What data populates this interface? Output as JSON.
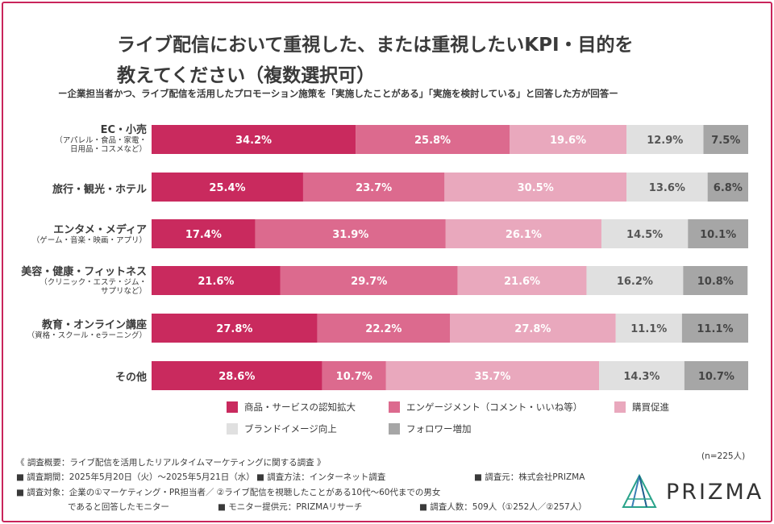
{
  "title_line1": "ライブ配信において重視した、または重視したいKPI・目的を",
  "title_line2": "教えてください（複数選択可）",
  "subtitle": "ー企業担当者かつ、ライブ配信を活用したプロモーション施策を「実施したことがある」「実施を検討している」と回答した方が回答ー",
  "colors": [
    "#c92a5e",
    "#dc6a8e",
    "#e9a8bd",
    "#e0e0e0",
    "#a6a6a6"
  ],
  "chart_data": {
    "type": "bar",
    "orientation": "horizontal-stacked-100",
    "categories": [
      {
        "label": "EC・小売",
        "sub": [
          "（アパレル・食品・家電・",
          "日用品・コスメなど）"
        ]
      },
      {
        "label": "旅行・観光・ホテル",
        "sub": []
      },
      {
        "label": "エンタメ・メディア",
        "sub": [
          "（ゲーム・音楽・映画・アプリ）"
        ]
      },
      {
        "label": "美容・健康・フィットネス",
        "sub": [
          "（クリニック・エステ・ジム・",
          "サプリなど）"
        ]
      },
      {
        "label": "教育・オンライン講座",
        "sub": [
          "（資格・スクール・eラーニング）"
        ]
      },
      {
        "label": "その他",
        "sub": []
      }
    ],
    "series": [
      {
        "name": "商品・サービスの認知拡大",
        "values": [
          34.2,
          25.4,
          17.4,
          21.6,
          27.8,
          28.6
        ]
      },
      {
        "name": "エンゲージメント（コメント・いいね等）",
        "values": [
          25.8,
          23.7,
          31.9,
          29.7,
          22.2,
          10.7
        ]
      },
      {
        "name": "購買促進",
        "values": [
          19.6,
          30.5,
          26.1,
          21.6,
          27.8,
          35.7
        ]
      },
      {
        "name": "ブランドイメージ向上",
        "values": [
          12.9,
          13.6,
          14.5,
          16.2,
          11.1,
          14.3
        ]
      },
      {
        "name": "フォロワー増加",
        "values": [
          7.5,
          6.8,
          10.1,
          10.8,
          11.1,
          10.7
        ]
      }
    ],
    "unit": "%"
  },
  "n_label": "(n=225人)",
  "notes": [
    "《 調査概要：ライブ配信を活用したリアルタイムマーケティングに関する調査 》",
    "■ 調査期間：2025年5月20日（火）〜2025年5月21日（水）",
    "■ 調査方法：インターネット調査",
    "■ 調査元：株式会社PRIZMA",
    "■ 調査対象：企業の①マーケティング・PR担当者／ ②ライブ配信を視聴したことがある10代〜60代までの男女",
    "であると回答したモニター",
    "■ モニター提供元：PRIZMAリサーチ",
    "■ 調査人数：509人（①252人／②257人）"
  ],
  "logo": "PRIZMA"
}
